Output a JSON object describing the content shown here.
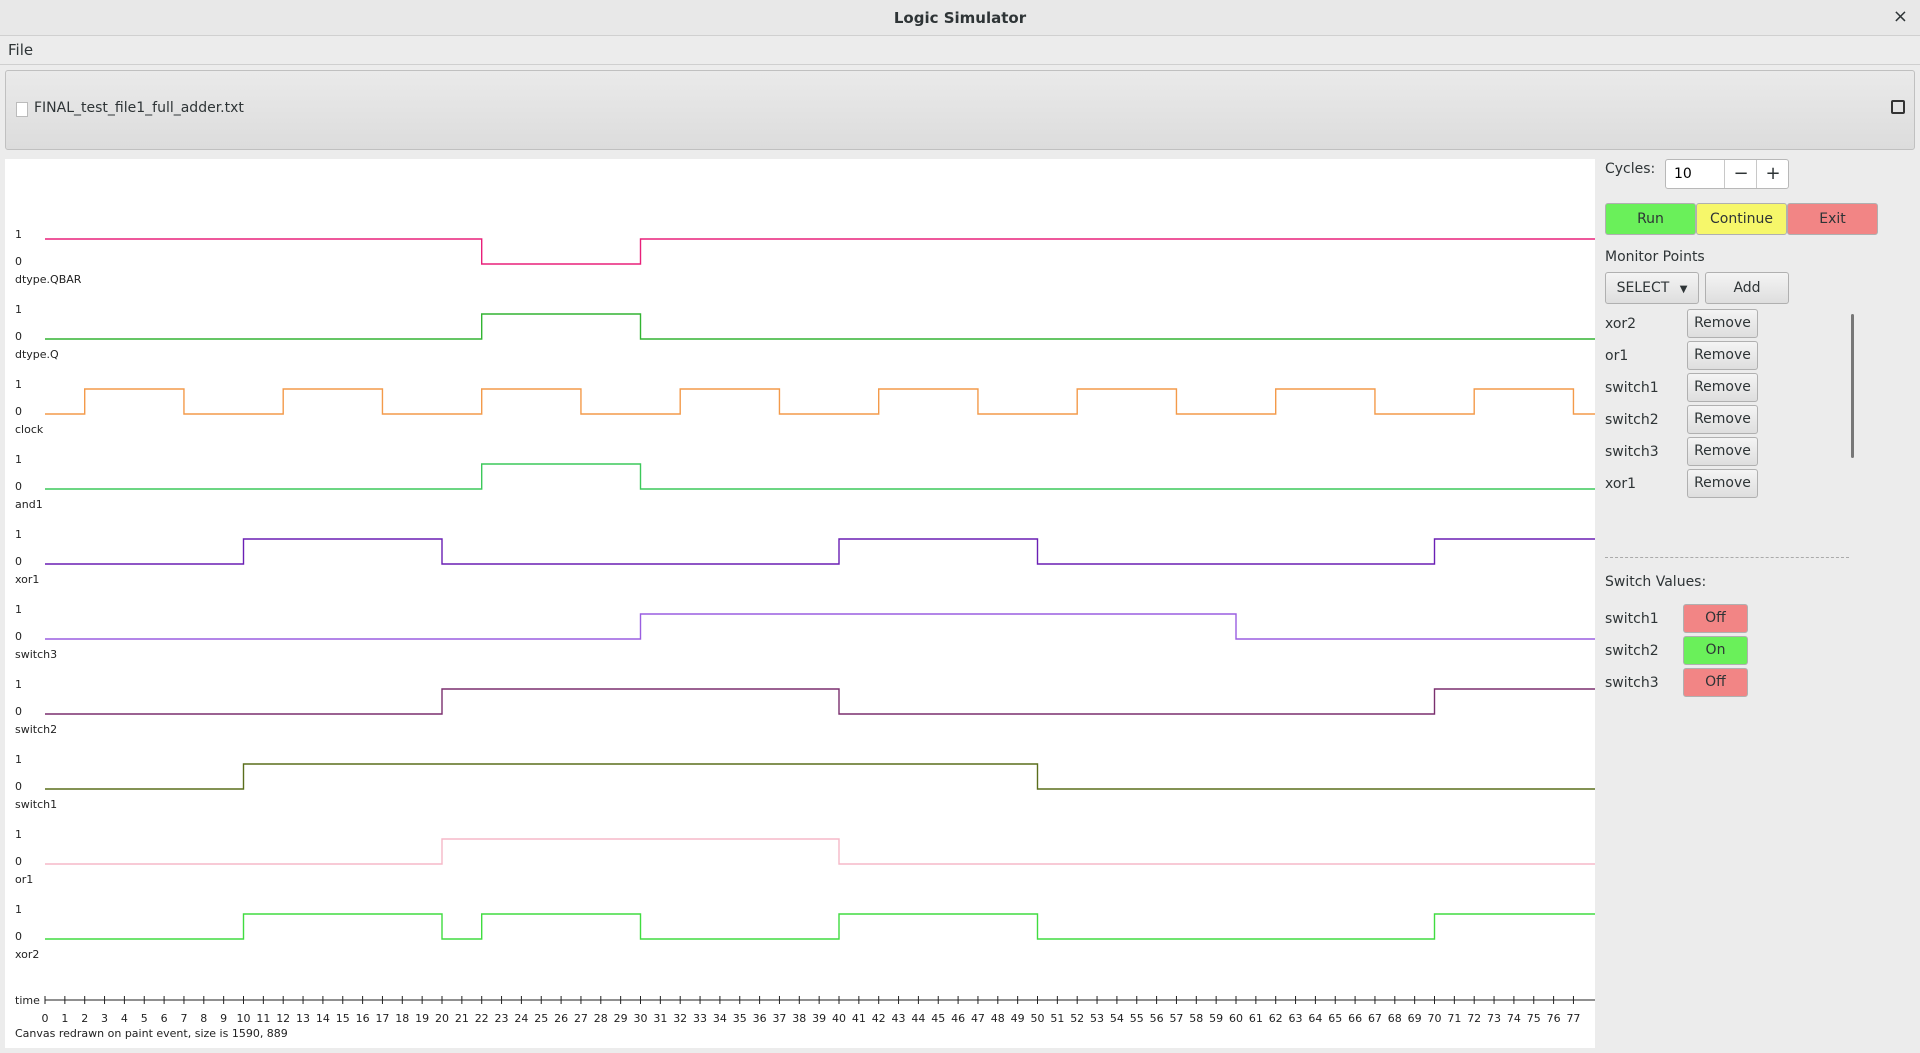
{
  "window": {
    "title": "Logic Simulator",
    "close_glyph": "×"
  },
  "menu": {
    "file": "File"
  },
  "file": {
    "name": "FINAL_test_file1_full_adder.txt"
  },
  "controls": {
    "cycles_label": "Cycles:",
    "cycles_value": "10",
    "minus": "−",
    "plus": "+",
    "run": "Run",
    "continue": "Continue",
    "exit": "Exit",
    "monitor_points": "Monitor Points",
    "select": "SELECT",
    "add": "Add",
    "monitors": [
      "xor2",
      "or1",
      "switch1",
      "switch2",
      "switch3",
      "xor1"
    ],
    "remove": "Remove",
    "switch_values_label": "Switch Values:",
    "switches": [
      {
        "name": "switch1",
        "state": "Off"
      },
      {
        "name": "switch2",
        "state": "On"
      },
      {
        "name": "switch3",
        "state": "Off"
      }
    ]
  },
  "colors": {
    "run": "#6af05a",
    "continue": "#f6f76a",
    "exit": "#f28585",
    "on": "#6af05a",
    "off": "#f28585"
  },
  "trace": {
    "level_high": "1",
    "level_low": "0",
    "time_label": "time",
    "status": "Canvas redrawn on paint event, size is 1590, 889",
    "tick_max": 77,
    "signals": [
      {
        "name": "dtype.QBAR",
        "color": "#e8207a",
        "edges": [
          [
            0,
            1
          ],
          [
            22,
            0
          ],
          [
            30,
            1
          ]
        ]
      },
      {
        "name": "dtype.Q",
        "color": "#32b432",
        "edges": [
          [
            0,
            0
          ],
          [
            22,
            1
          ],
          [
            30,
            0
          ]
        ]
      },
      {
        "name": "clock",
        "color": "#f39a4a",
        "edges": [
          [
            0,
            0
          ],
          [
            2,
            1
          ],
          [
            7,
            0
          ],
          [
            12,
            1
          ],
          [
            17,
            0
          ],
          [
            22,
            1
          ],
          [
            27,
            0
          ],
          [
            32,
            1
          ],
          [
            37,
            0
          ],
          [
            42,
            1
          ],
          [
            47,
            0
          ],
          [
            52,
            1
          ],
          [
            57,
            0
          ],
          [
            62,
            1
          ],
          [
            67,
            0
          ],
          [
            72,
            1
          ],
          [
            77,
            0
          ]
        ]
      },
      {
        "name": "and1",
        "color": "#3cc85a",
        "edges": [
          [
            0,
            0
          ],
          [
            22,
            1
          ],
          [
            30,
            0
          ]
        ]
      },
      {
        "name": "xor1",
        "color": "#6a1fb4",
        "edges": [
          [
            0,
            0
          ],
          [
            10,
            1
          ],
          [
            20,
            0
          ],
          [
            40,
            1
          ],
          [
            50,
            0
          ],
          [
            70,
            1
          ]
        ]
      },
      {
        "name": "switch3",
        "color": "#9a5ee0",
        "edges": [
          [
            0,
            0
          ],
          [
            30,
            1
          ],
          [
            60,
            0
          ]
        ]
      },
      {
        "name": "switch2",
        "color": "#7a2f6e",
        "edges": [
          [
            0,
            0
          ],
          [
            20,
            1
          ],
          [
            40,
            0
          ],
          [
            70,
            1
          ]
        ]
      },
      {
        "name": "switch1",
        "color": "#5a6e1c",
        "edges": [
          [
            0,
            0
          ],
          [
            10,
            1
          ],
          [
            50,
            0
          ]
        ]
      },
      {
        "name": "or1",
        "color": "#f5b8c8",
        "edges": [
          [
            0,
            0
          ],
          [
            20,
            1
          ],
          [
            40,
            0
          ]
        ]
      },
      {
        "name": "xor2",
        "color": "#40dc40",
        "edges": [
          [
            0,
            0
          ],
          [
            10,
            1
          ],
          [
            20,
            0
          ],
          [
            22,
            1
          ],
          [
            30,
            0
          ],
          [
            40,
            1
          ],
          [
            50,
            0
          ],
          [
            70,
            1
          ]
        ]
      }
    ]
  }
}
